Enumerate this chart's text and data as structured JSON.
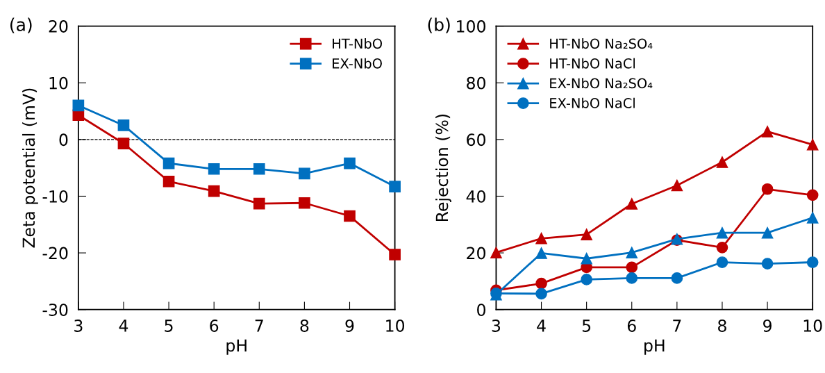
{
  "chart_data": [
    {
      "type": "line",
      "xlabel": "pH",
      "ylabel": "Zeta potential (mV)",
      "annotations": [
        "(a)"
      ],
      "x": [
        3,
        4,
        5,
        6,
        7,
        8,
        9,
        10
      ],
      "xlim": [
        3,
        10
      ],
      "xticks": [
        3,
        4,
        5,
        6,
        7,
        8,
        9,
        10
      ],
      "ylim": [
        -30,
        20
      ],
      "yticks": [
        -30,
        -20,
        -10,
        0,
        10,
        20
      ],
      "grid": false,
      "legend": "top right",
      "ref_lines": [
        {
          "axis": "y",
          "value": 0,
          "color": "#000000",
          "line_style": "dashed"
        }
      ],
      "series": [
        {
          "name": "HT-NbO",
          "color": "#c00000",
          "marker": "square",
          "values": [
            4.3,
            -0.7,
            -7.4,
            -9.1,
            -11.3,
            -11.2,
            -13.5,
            -20.3
          ]
        },
        {
          "name": "EX-NbO",
          "color": "#0070c0",
          "marker": "square",
          "values": [
            6.0,
            2.5,
            -4.2,
            -5.2,
            -5.2,
            -6.0,
            -4.2,
            -8.3
          ]
        }
      ]
    },
    {
      "type": "line",
      "xlabel": "pH",
      "ylabel": "Rejection (%)",
      "annotations": [
        "(b)"
      ],
      "x": [
        3,
        4,
        5,
        6,
        7,
        8,
        9,
        10
      ],
      "xlim": [
        3,
        10
      ],
      "xticks": [
        3,
        4,
        5,
        6,
        7,
        8,
        9,
        10
      ],
      "ylim": [
        0,
        100
      ],
      "yticks": [
        0,
        20,
        40,
        60,
        80,
        100
      ],
      "grid": false,
      "legend": "top left",
      "series": [
        {
          "name": "HT-NbO Na₂SO₄",
          "color": "#c00000",
          "marker": "triangle",
          "values": [
            20.1,
            25.1,
            26.5,
            37.3,
            43.8,
            52,
            62.8,
            58.2
          ]
        },
        {
          "name": "HT-NbO NaCl",
          "color": "#c00000",
          "marker": "circle",
          "values": [
            6.8,
            9.2,
            14.9,
            14.9,
            24.5,
            21.9,
            42.5,
            40.4
          ]
        },
        {
          "name": "EX-NbO Na₂SO₄",
          "color": "#0070c0",
          "marker": "triangle",
          "values": [
            5.3,
            19.9,
            18,
            20.1,
            24.9,
            27.1,
            27.1,
            32.4
          ]
        },
        {
          "name": "EX-NbO NaCl",
          "color": "#0070c0",
          "marker": "circle",
          "values": [
            5.7,
            5.6,
            10.6,
            11.1,
            11.1,
            16.7,
            16.2,
            16.7
          ]
        }
      ]
    }
  ]
}
